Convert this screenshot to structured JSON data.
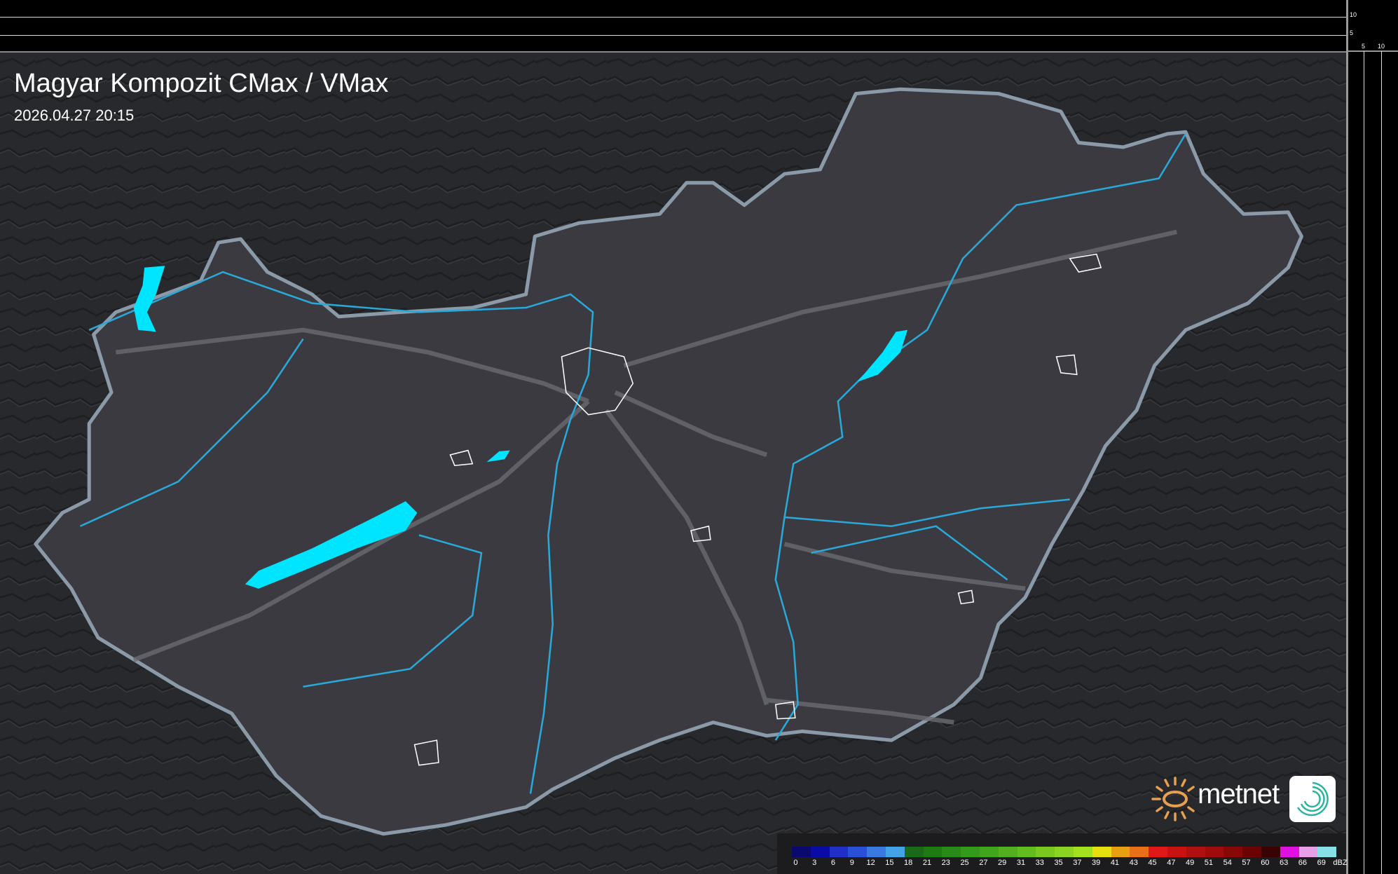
{
  "header": {
    "title": "Magyar Kompozit CMax / VMax",
    "timestamp": "2026.04.27 20:15"
  },
  "scale": {
    "vertical_labels": [
      "10",
      "5"
    ],
    "horizontal_labels": [
      "5",
      "10"
    ]
  },
  "legend": {
    "labels": [
      "0",
      "3",
      "6",
      "9",
      "12",
      "15",
      "18",
      "21",
      "23",
      "25",
      "27",
      "29",
      "31",
      "33",
      "35",
      "37",
      "39",
      "41",
      "43",
      "45",
      "47",
      "49",
      "51",
      "54",
      "57",
      "60",
      "63",
      "66",
      "69"
    ],
    "unit": "dBZ",
    "colors": [
      "#0a0a6e",
      "#0a0aa8",
      "#1f2fc8",
      "#2b50d8",
      "#3a7ae0",
      "#44a2e6",
      "#1a6a1a",
      "#207a14",
      "#2a8a18",
      "#349a1c",
      "#40a41e",
      "#52b020",
      "#62bc20",
      "#78c820",
      "#8cd424",
      "#a2e020",
      "#e6e010",
      "#e8a010",
      "#e87018",
      "#e01818",
      "#c81212",
      "#b01010",
      "#a00c0c",
      "#880808",
      "#6a0404",
      "#3a0202",
      "#e010e0",
      "#e6a0e6",
      "#88e0e6"
    ]
  },
  "logo": {
    "text": "metnet"
  },
  "colors": {
    "water": "#00e5ff",
    "river": "#2aa8d8",
    "border": "#8a9aa8",
    "country_fill": "#3a3a40",
    "background": "#26272a"
  }
}
